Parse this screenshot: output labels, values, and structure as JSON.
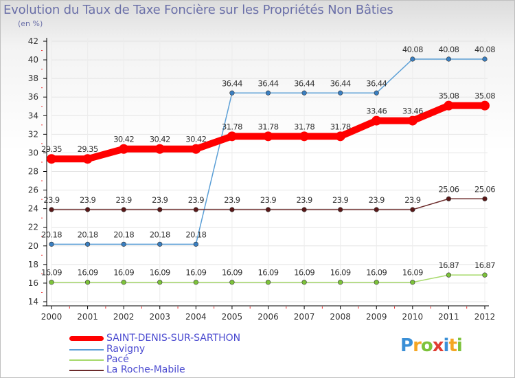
{
  "title": "Evolution du Taux de Taxe Foncière sur les Propriétés Non Bâties",
  "subtitle": "(en %)",
  "chart_data": {
    "type": "line",
    "title": "Evolution du Taux de Taxe Foncière sur les Propriétés Non Bâties",
    "ylabel": "(en %)",
    "xlabel": "",
    "categories": [
      "2000",
      "2001",
      "2002",
      "2003",
      "2004",
      "2005",
      "2006",
      "2007",
      "2008",
      "2009",
      "2010",
      "2011",
      "2012"
    ],
    "ylim": [
      14,
      42
    ],
    "yticks": [
      14,
      16,
      18,
      20,
      22,
      24,
      26,
      28,
      30,
      32,
      34,
      36,
      38,
      40,
      42
    ],
    "grid": true,
    "series": [
      {
        "name": "SAINT-DENIS-SUR-SARTHON",
        "color": "#ff0000",
        "emphasis": true,
        "values": [
          29.35,
          29.35,
          30.42,
          30.42,
          30.42,
          31.78,
          31.78,
          31.78,
          31.78,
          33.46,
          33.46,
          35.08,
          35.08
        ],
        "labels": [
          "29.35",
          "29.35",
          "30.42",
          "30.42",
          "30.42",
          "31.78",
          "31.78",
          "31.78",
          "31.78",
          "33.46",
          "33.46",
          "35.08",
          "35.08"
        ]
      },
      {
        "name": "Ravigny",
        "color": "#5b9fd6",
        "point_color": "#3a7fc1",
        "values": [
          20.18,
          20.18,
          20.18,
          20.18,
          20.18,
          36.44,
          36.44,
          36.44,
          36.44,
          36.44,
          40.08,
          40.08,
          40.08
        ],
        "labels": [
          "20.18",
          "20.18",
          "20.18",
          "20.18",
          "20.18",
          "36.44",
          "36.44",
          "36.44",
          "36.44",
          "36.44",
          "40.08",
          "40.08",
          "40.08"
        ]
      },
      {
        "name": "Pacé",
        "color": "#a6d96a",
        "point_color": "#7cc23a",
        "values": [
          16.09,
          16.09,
          16.09,
          16.09,
          16.09,
          16.09,
          16.09,
          16.09,
          16.09,
          16.09,
          16.09,
          16.87,
          16.87
        ],
        "labels": [
          "16.09",
          "16.09",
          "16.09",
          "16.09",
          "16.09",
          "16.09",
          "16.09",
          "16.09",
          "16.09",
          "16.09",
          "16.09",
          "16.87",
          "16.87"
        ]
      },
      {
        "name": "La Roche-Mabile",
        "color": "#6b2a2a",
        "point_color": "#5a1818",
        "values": [
          23.9,
          23.9,
          23.9,
          23.9,
          23.9,
          23.9,
          23.9,
          23.9,
          23.9,
          23.9,
          23.9,
          25.06,
          25.06
        ],
        "labels": [
          "23.9",
          "23.9",
          "23.9",
          "23.9",
          "23.9",
          "23.9",
          "23.9",
          "23.9",
          "23.9",
          "23.9",
          "23.9",
          "25.06",
          "25.06"
        ]
      }
    ],
    "legend_position": "bottom-left"
  },
  "legend": {
    "items": [
      {
        "label": "SAINT-DENIS-SUR-SARTHON",
        "color": "#ff0000"
      },
      {
        "label": "Ravigny",
        "color": "#5b9fd6"
      },
      {
        "label": "Pacé",
        "color": "#a6d96a"
      },
      {
        "label": "La Roche-Mabile",
        "color": "#6b2a2a"
      }
    ]
  },
  "logo": {
    "text": "Proxiti",
    "letters": [
      {
        "ch": "P",
        "color": "#3a8fd6"
      },
      {
        "ch": "r",
        "color": "#f5a623"
      },
      {
        "ch": "o",
        "color": "#7cc23a"
      },
      {
        "ch": "x",
        "color": "#e03c31"
      },
      {
        "ch": "i",
        "color": "#3a8fd6"
      },
      {
        "ch": "t",
        "color": "#f5a623"
      },
      {
        "ch": "i",
        "color": "#7cc23a"
      }
    ]
  }
}
